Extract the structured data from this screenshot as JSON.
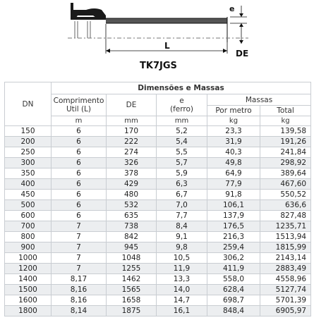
{
  "drawing": {
    "label_e": "e",
    "label_l": "L",
    "label_de": "DE",
    "model": "TK7JGS"
  },
  "table": {
    "header": {
      "dn": "DN",
      "group_title": "Dimensões e Massas",
      "comprimento_line1": "Comprimento",
      "comprimento_line2": "Util (L)",
      "de": "DE",
      "e_line1": "e",
      "e_line2": "(ferro)",
      "massas": "Massas",
      "por_metro": "Por metro",
      "total": "Total",
      "unit_length": "m",
      "unit_de": "mm",
      "unit_e": "mm",
      "unit_por_metro": "kg",
      "unit_total": "kg"
    },
    "rows": [
      {
        "dn": "150",
        "length": "6",
        "de": "170",
        "e": "5,2",
        "per_meter": "23,3",
        "total": "139,58"
      },
      {
        "dn": "200",
        "length": "6",
        "de": "222",
        "e": "5,4",
        "per_meter": "31,9",
        "total": "191,26"
      },
      {
        "dn": "250",
        "length": "6",
        "de": "274",
        "e": "5,5",
        "per_meter": "40,3",
        "total": "241,84"
      },
      {
        "dn": "300",
        "length": "6",
        "de": "326",
        "e": "5,7",
        "per_meter": "49,8",
        "total": "298,92"
      },
      {
        "dn": "350",
        "length": "6",
        "de": "378",
        "e": "5,9",
        "per_meter": "64,9",
        "total": "389,64"
      },
      {
        "dn": "400",
        "length": "6",
        "de": "429",
        "e": "6,3",
        "per_meter": "77,9",
        "total": "467,60"
      },
      {
        "dn": "450",
        "length": "6",
        "de": "480",
        "e": "6,7",
        "per_meter": "91,8",
        "total": "550,52"
      },
      {
        "dn": "500",
        "length": "6",
        "de": "532",
        "e": "7,0",
        "per_meter": "106,1",
        "total": "636,6"
      },
      {
        "dn": "600",
        "length": "6",
        "de": "635",
        "e": "7,7",
        "per_meter": "137,9",
        "total": "827,48"
      },
      {
        "dn": "700",
        "length": "7",
        "de": "738",
        "e": "8,4",
        "per_meter": "176,5",
        "total": "1235,71"
      },
      {
        "dn": "800",
        "length": "7",
        "de": "842",
        "e": "9,1",
        "per_meter": "216,3",
        "total": "1513,94"
      },
      {
        "dn": "900",
        "length": "7",
        "de": "945",
        "e": "9,8",
        "per_meter": "259,4",
        "total": "1815,99"
      },
      {
        "dn": "1000",
        "length": "7",
        "de": "1048",
        "e": "10,5",
        "per_meter": "306,2",
        "total": "2143,14"
      },
      {
        "dn": "1200",
        "length": "7",
        "de": "1255",
        "e": "11,9",
        "per_meter": "411,9",
        "total": "2883,49"
      },
      {
        "dn": "1400",
        "length": "8,17",
        "de": "1462",
        "e": "13,3",
        "per_meter": "558,0",
        "total": "4558,96"
      },
      {
        "dn": "1500",
        "length": "8,16",
        "de": "1565",
        "e": "14,0",
        "per_meter": "628,4",
        "total": "5127,74"
      },
      {
        "dn": "1600",
        "length": "8,16",
        "de": "1658",
        "e": "14,7",
        "per_meter": "698,7",
        "total": "5701,39"
      },
      {
        "dn": "1800",
        "length": "8,14",
        "de": "1875",
        "e": "16,1",
        "per_meter": "848,4",
        "total": "6905,97"
      }
    ]
  }
}
